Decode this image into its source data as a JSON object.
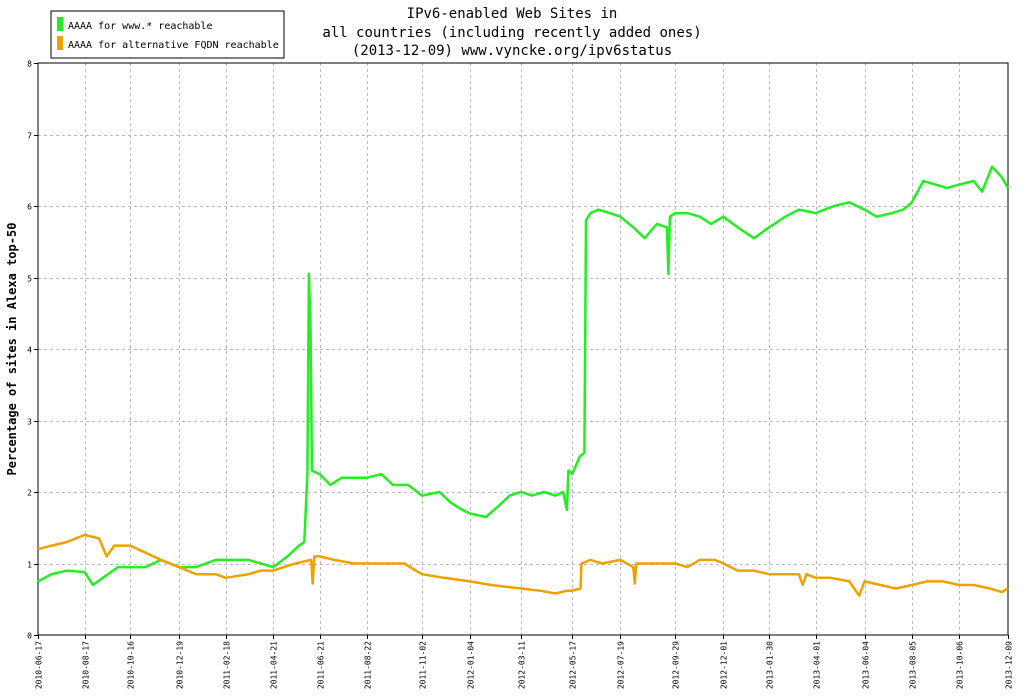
{
  "chart_data": {
    "type": "line",
    "title_lines": [
      "IPv6-enabled Web Sites in",
      "all countries (including recently added ones)",
      "(2013-12-09) www.vyncke.org/ipv6status"
    ],
    "xlabel": "",
    "ylabel": "Percentage of sites in Alexa top-50",
    "ylim": [
      0,
      8
    ],
    "yticks": [
      0,
      1,
      2,
      3,
      4,
      5,
      6,
      7,
      8
    ],
    "xlim": [
      "2010-06-17",
      "2013-12-09"
    ],
    "xticks": [
      "2010-06-17",
      "2010-08-17",
      "2010-10-16",
      "2010-12-19",
      "2011-02-18",
      "2011-04-21",
      "2011-06-21",
      "2011-08-22",
      "2011-11-02",
      "2012-01-04",
      "2012-03-11",
      "2012-05-17",
      "2012-07-19",
      "2012-09-29",
      "2012-12-01",
      "2013-01-30",
      "2013-04-01",
      "2013-06-04",
      "2013-08-05",
      "2013-10-06",
      "2013-12-09"
    ],
    "grid": true,
    "legend_position": "top-left",
    "series": [
      {
        "name": "AAAA for www.* reachable",
        "color": "#22ee22",
        "points": [
          [
            "2010-06-17",
            0.75
          ],
          [
            "2010-07-05",
            0.85
          ],
          [
            "2010-07-25",
            0.9
          ],
          [
            "2010-08-17",
            0.88
          ],
          [
            "2010-08-28",
            0.7
          ],
          [
            "2010-09-10",
            0.8
          ],
          [
            "2010-09-30",
            0.95
          ],
          [
            "2010-10-16",
            0.95
          ],
          [
            "2010-11-05",
            0.95
          ],
          [
            "2010-11-25",
            1.05
          ],
          [
            "2010-12-19",
            0.95
          ],
          [
            "2011-01-10",
            0.95
          ],
          [
            "2011-02-05",
            1.05
          ],
          [
            "2011-02-18",
            1.05
          ],
          [
            "2011-03-20",
            1.05
          ],
          [
            "2011-04-05",
            1.0
          ],
          [
            "2011-04-21",
            0.95
          ],
          [
            "2011-05-10",
            1.1
          ],
          [
            "2011-05-25",
            1.25
          ],
          [
            "2011-06-01",
            1.3
          ],
          [
            "2011-06-05",
            2.25
          ],
          [
            "2011-06-07",
            5.05
          ],
          [
            "2011-06-09",
            4.3
          ],
          [
            "2011-06-11",
            2.3
          ],
          [
            "2011-06-21",
            2.25
          ],
          [
            "2011-07-05",
            2.1
          ],
          [
            "2011-07-20",
            2.2
          ],
          [
            "2011-08-05",
            2.2
          ],
          [
            "2011-08-22",
            2.2
          ],
          [
            "2011-09-10",
            2.25
          ],
          [
            "2011-09-25",
            2.1
          ],
          [
            "2011-10-15",
            2.1
          ],
          [
            "2011-11-02",
            1.95
          ],
          [
            "2011-11-25",
            2.0
          ],
          [
            "2011-12-10",
            1.85
          ],
          [
            "2011-12-25",
            1.75
          ],
          [
            "2012-01-04",
            1.7
          ],
          [
            "2012-01-25",
            1.65
          ],
          [
            "2012-02-10",
            1.8
          ],
          [
            "2012-02-25",
            1.95
          ],
          [
            "2012-03-11",
            2.0
          ],
          [
            "2012-03-25",
            1.95
          ],
          [
            "2012-04-10",
            2.0
          ],
          [
            "2012-04-25",
            1.95
          ],
          [
            "2012-05-05",
            2.0
          ],
          [
            "2012-05-10",
            1.75
          ],
          [
            "2012-05-12",
            2.3
          ],
          [
            "2012-05-17",
            2.25
          ],
          [
            "2012-05-27",
            2.5
          ],
          [
            "2012-06-02",
            2.55
          ],
          [
            "2012-06-04",
            5.8
          ],
          [
            "2012-06-10",
            5.9
          ],
          [
            "2012-06-20",
            5.95
          ],
          [
            "2012-07-05",
            5.9
          ],
          [
            "2012-07-19",
            5.85
          ],
          [
            "2012-08-05",
            5.7
          ],
          [
            "2012-08-20",
            5.55
          ],
          [
            "2012-09-05",
            5.75
          ],
          [
            "2012-09-18",
            5.7
          ],
          [
            "2012-09-20",
            5.05
          ],
          [
            "2012-09-22",
            5.85
          ],
          [
            "2012-09-29",
            5.9
          ],
          [
            "2012-10-15",
            5.9
          ],
          [
            "2012-10-31",
            5.85
          ],
          [
            "2012-11-15",
            5.75
          ],
          [
            "2012-12-01",
            5.85
          ],
          [
            "2012-12-20",
            5.7
          ],
          [
            "2013-01-10",
            5.55
          ],
          [
            "2013-01-30",
            5.7
          ],
          [
            "2013-02-20",
            5.85
          ],
          [
            "2013-03-10",
            5.95
          ],
          [
            "2013-04-01",
            5.9
          ],
          [
            "2013-04-25",
            6.0
          ],
          [
            "2013-05-15",
            6.05
          ],
          [
            "2013-06-04",
            5.95
          ],
          [
            "2013-06-20",
            5.85
          ],
          [
            "2013-07-10",
            5.9
          ],
          [
            "2013-07-25",
            5.95
          ],
          [
            "2013-08-05",
            6.05
          ],
          [
            "2013-08-20",
            6.35
          ],
          [
            "2013-09-05",
            6.3
          ],
          [
            "2013-09-20",
            6.25
          ],
          [
            "2013-10-06",
            6.3
          ],
          [
            "2013-10-25",
            6.35
          ],
          [
            "2013-11-05",
            6.2
          ],
          [
            "2013-11-18",
            6.55
          ],
          [
            "2013-12-01",
            6.4
          ],
          [
            "2013-12-09",
            6.25
          ]
        ]
      },
      {
        "name": "AAAA for alternative FQDN reachable",
        "color": "#f0a000",
        "points": [
          [
            "2010-06-17",
            1.2
          ],
          [
            "2010-07-05",
            1.25
          ],
          [
            "2010-07-25",
            1.3
          ],
          [
            "2010-08-17",
            1.4
          ],
          [
            "2010-09-05",
            1.35
          ],
          [
            "2010-09-15",
            1.1
          ],
          [
            "2010-09-25",
            1.25
          ],
          [
            "2010-10-16",
            1.25
          ],
          [
            "2010-11-05",
            1.15
          ],
          [
            "2010-11-25",
            1.05
          ],
          [
            "2010-12-19",
            0.95
          ],
          [
            "2011-01-10",
            0.85
          ],
          [
            "2011-02-05",
            0.85
          ],
          [
            "2011-02-18",
            0.8
          ],
          [
            "2011-03-20",
            0.85
          ],
          [
            "2011-04-05",
            0.9
          ],
          [
            "2011-04-21",
            0.9
          ],
          [
            "2011-05-20",
            1.0
          ],
          [
            "2011-06-10",
            1.05
          ],
          [
            "2011-06-12",
            0.72
          ],
          [
            "2011-06-14",
            1.1
          ],
          [
            "2011-06-21",
            1.1
          ],
          [
            "2011-07-10",
            1.05
          ],
          [
            "2011-08-05",
            1.0
          ],
          [
            "2011-08-22",
            1.0
          ],
          [
            "2011-09-15",
            1.0
          ],
          [
            "2011-10-10",
            1.0
          ],
          [
            "2011-10-25",
            0.9
          ],
          [
            "2011-11-02",
            0.85
          ],
          [
            "2011-12-01",
            0.8
          ],
          [
            "2012-01-04",
            0.75
          ],
          [
            "2012-02-01",
            0.7
          ],
          [
            "2012-03-11",
            0.65
          ],
          [
            "2012-04-05",
            0.62
          ],
          [
            "2012-04-25",
            0.58
          ],
          [
            "2012-05-10",
            0.62
          ],
          [
            "2012-05-17",
            0.62
          ],
          [
            "2012-05-28",
            0.65
          ],
          [
            "2012-05-29",
            1.0
          ],
          [
            "2012-06-10",
            1.05
          ],
          [
            "2012-06-25",
            1.0
          ],
          [
            "2012-07-19",
            1.05
          ],
          [
            "2012-08-05",
            0.95
          ],
          [
            "2012-08-07",
            0.72
          ],
          [
            "2012-08-09",
            1.0
          ],
          [
            "2012-08-25",
            1.0
          ],
          [
            "2012-09-29",
            1.0
          ],
          [
            "2012-10-15",
            0.95
          ],
          [
            "2012-10-31",
            1.05
          ],
          [
            "2012-11-20",
            1.05
          ],
          [
            "2012-12-01",
            1.0
          ],
          [
            "2012-12-20",
            0.9
          ],
          [
            "2013-01-10",
            0.9
          ],
          [
            "2013-01-30",
            0.85
          ],
          [
            "2013-02-20",
            0.85
          ],
          [
            "2013-03-10",
            0.85
          ],
          [
            "2013-03-15",
            0.7
          ],
          [
            "2013-03-20",
            0.85
          ],
          [
            "2013-04-01",
            0.8
          ],
          [
            "2013-04-20",
            0.8
          ],
          [
            "2013-05-15",
            0.75
          ],
          [
            "2013-05-28",
            0.55
          ],
          [
            "2013-06-04",
            0.75
          ],
          [
            "2013-06-25",
            0.7
          ],
          [
            "2013-07-15",
            0.65
          ],
          [
            "2013-08-05",
            0.7
          ],
          [
            "2013-08-25",
            0.75
          ],
          [
            "2013-09-15",
            0.75
          ],
          [
            "2013-10-06",
            0.7
          ],
          [
            "2013-10-25",
            0.7
          ],
          [
            "2013-11-15",
            0.65
          ],
          [
            "2013-12-01",
            0.6
          ],
          [
            "2013-12-09",
            0.65
          ]
        ]
      }
    ]
  }
}
